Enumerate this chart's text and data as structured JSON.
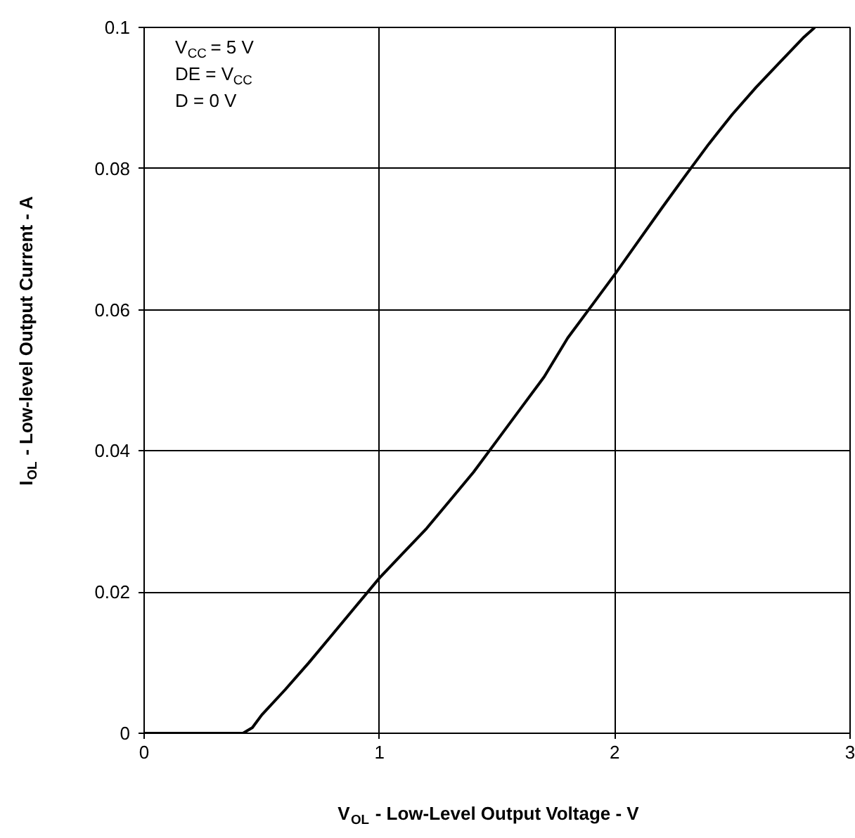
{
  "chart_data": {
    "type": "line",
    "xlabel": "V$_{OL}$ - Low-Level Output Voltage - V",
    "ylabel": "I$_{OL}$ - Low-level Output Current - A",
    "annotations": [
      "V$_{CC}$ = 5 V",
      "DE = V$_{CC}$",
      "D = 0 V"
    ],
    "x": [
      0,
      0.2,
      0.42,
      0.46,
      0.5,
      0.6,
      0.7,
      0.8,
      0.9,
      1.0,
      1.1,
      1.2,
      1.3,
      1.4,
      1.5,
      1.6,
      1.7,
      1.8,
      1.9,
      2.0,
      2.1,
      2.2,
      2.3,
      2.4,
      2.5,
      2.6,
      2.7,
      2.8,
      2.85
    ],
    "series": [
      {
        "color": "#000000",
        "values": [
          0,
          0,
          0,
          0.0008,
          0.0026,
          0.0062,
          0.01,
          0.014,
          0.018,
          0.022,
          0.0255,
          0.029,
          0.033,
          0.037,
          0.0415,
          0.046,
          0.0505,
          0.056,
          0.0605,
          0.065,
          0.0697,
          0.0744,
          0.079,
          0.0835,
          0.0877,
          0.0915,
          0.095,
          0.0985,
          0.1
        ]
      }
    ],
    "xlim": [
      0,
      3
    ],
    "ylim": [
      0,
      0.1
    ],
    "xticks": [
      0,
      1,
      2,
      3
    ],
    "yticks": [
      0,
      0.02,
      0.04,
      0.06,
      0.08,
      0.1
    ],
    "grid": true,
    "marker": "none",
    "line_style": "solid"
  }
}
